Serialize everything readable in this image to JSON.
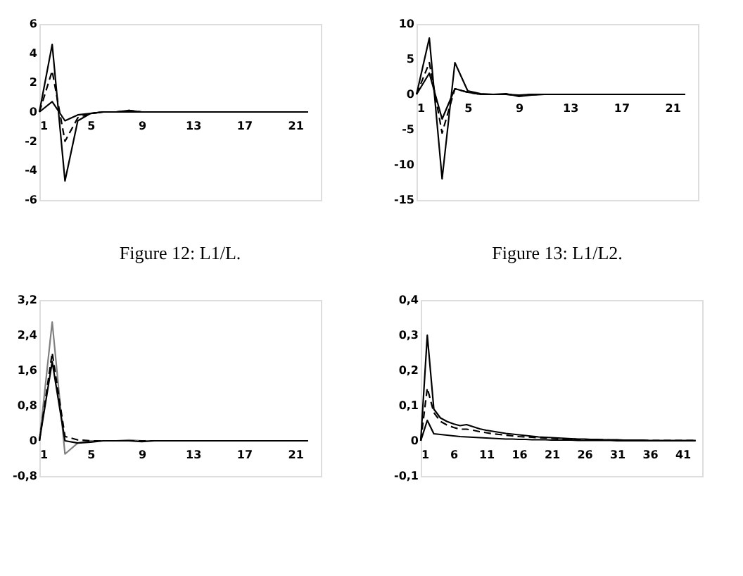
{
  "chart_data": [
    {
      "type": "line",
      "title": "Figure 12: L1/L.",
      "x": [
        1,
        2,
        3,
        4,
        5,
        6,
        7,
        8,
        9,
        10,
        11,
        12,
        13,
        14,
        15,
        16,
        17,
        18,
        19,
        20,
        21,
        22
      ],
      "xlim": [
        1,
        23
      ],
      "xticks": [
        1,
        5,
        9,
        13,
        17,
        21
      ],
      "ylim": [
        -6,
        6
      ],
      "yticks": [
        -6,
        -4,
        -2,
        0,
        2,
        4,
        6
      ],
      "grid": false,
      "marker": "none",
      "series": [
        {
          "color": "#000000",
          "line_style": "solid",
          "values": [
            0,
            4.6,
            -4.7,
            -0.6,
            -0.1,
            0,
            0,
            0.1,
            0,
            0,
            0,
            0,
            0,
            0,
            0,
            0,
            0,
            0,
            0,
            0,
            0,
            0
          ]
        },
        {
          "color": "#000000",
          "line_style": "dashed",
          "values": [
            0,
            2.8,
            -2.0,
            -0.4,
            -0.1,
            0,
            0,
            0.1,
            0,
            0,
            0,
            0,
            0,
            0,
            0,
            0,
            0,
            0,
            0,
            0,
            0,
            0
          ]
        },
        {
          "color": "#000000",
          "line_style": "solid",
          "values": [
            0,
            0.7,
            -0.6,
            -0.2,
            -0.1,
            0,
            0,
            0,
            0,
            0,
            0,
            0,
            0,
            0,
            0,
            0,
            0,
            0,
            0,
            0,
            0,
            0
          ]
        }
      ]
    },
    {
      "type": "line",
      "title": "Figure 13: L1/L2.",
      "x": [
        1,
        2,
        3,
        4,
        5,
        6,
        7,
        8,
        9,
        10,
        11,
        12,
        13,
        14,
        15,
        16,
        17,
        18,
        19,
        20,
        21,
        22
      ],
      "xlim": [
        1,
        23
      ],
      "xticks": [
        1,
        5,
        9,
        13,
        17,
        21
      ],
      "ylim": [
        -15,
        10
      ],
      "yticks": [
        -15,
        -10,
        -5,
        0,
        5,
        10
      ],
      "grid": false,
      "marker": "none",
      "series": [
        {
          "color": "#000000",
          "line_style": "solid",
          "values": [
            0,
            8,
            -12,
            4.5,
            0.5,
            0.1,
            0,
            0.1,
            -0.3,
            -0.1,
            0,
            0,
            0,
            0,
            0,
            0,
            0,
            0,
            0,
            0,
            0,
            0
          ]
        },
        {
          "color": "#000000",
          "line_style": "dashed",
          "values": [
            0,
            4.5,
            -5.5,
            0.8,
            0.3,
            0,
            0,
            0,
            -0.2,
            0,
            0,
            0,
            0,
            0,
            0,
            0,
            0,
            0,
            0,
            0,
            0,
            0
          ]
        },
        {
          "color": "#000000",
          "line_style": "solid",
          "values": [
            0,
            3,
            -3.5,
            0.8,
            0.3,
            0,
            0,
            0,
            -0.1,
            0,
            0,
            0,
            0,
            0,
            0,
            0,
            0,
            0,
            0,
            0,
            0,
            0
          ]
        }
      ]
    },
    {
      "type": "line",
      "x": [
        1,
        2,
        3,
        4,
        5,
        6,
        7,
        8,
        9,
        10,
        11,
        12,
        13,
        14,
        15,
        16,
        17,
        18,
        19,
        20,
        21,
        22
      ],
      "xlim": [
        1,
        23
      ],
      "xticks": [
        1,
        5,
        9,
        13,
        17,
        21
      ],
      "ylim": [
        -0.8,
        3.2
      ],
      "yticks": [
        {
          "value": -0.8,
          "label": "-0,8"
        },
        0,
        {
          "value": 0.8,
          "label": "0,8"
        },
        {
          "value": 1.6,
          "label": "1,6"
        },
        {
          "value": 2.4,
          "label": "2,4"
        },
        {
          "value": 3.2,
          "label": "3,2"
        }
      ],
      "grid": false,
      "marker": "none",
      "series": [
        {
          "color": "#808080",
          "line_style": "solid",
          "values": [
            0,
            2.7,
            -0.3,
            -0.05,
            0,
            0,
            0,
            0.02,
            0,
            0,
            0,
            0,
            0,
            0,
            0,
            0,
            0,
            0,
            0,
            0,
            0,
            0
          ]
        },
        {
          "color": "#000000",
          "line_style": "dashed",
          "values": [
            0,
            2.0,
            0.1,
            0.02,
            0,
            0,
            0,
            0,
            0,
            0,
            0,
            0,
            0,
            0,
            0,
            0,
            0,
            0,
            0,
            0,
            0,
            0
          ]
        },
        {
          "color": "#000000",
          "line_style": "solid",
          "values": [
            0,
            1.8,
            0,
            -0.05,
            -0.03,
            0,
            0,
            0,
            -0.02,
            0,
            0,
            0,
            0,
            0,
            0,
            0,
            0,
            0,
            0,
            0,
            0,
            0
          ]
        }
      ]
    },
    {
      "type": "line",
      "x": [
        1,
        2,
        3,
        4,
        5,
        6,
        7,
        8,
        9,
        10,
        11,
        12,
        13,
        14,
        15,
        16,
        17,
        18,
        19,
        20,
        21,
        22,
        23,
        24,
        25,
        26,
        27,
        28,
        29,
        30,
        31,
        32,
        33,
        34,
        35,
        36,
        37,
        38,
        39,
        40,
        41,
        42,
        43
      ],
      "xlim": [
        1,
        44
      ],
      "xticks": [
        1,
        6,
        11,
        16,
        21,
        26,
        31,
        36,
        41
      ],
      "ylim": [
        -0.1,
        0.4
      ],
      "yticks": [
        {
          "value": -0.1,
          "label": "-0,1"
        },
        0,
        {
          "value": 0.1,
          "label": "0,1"
        },
        {
          "value": 0.2,
          "label": "0,2"
        },
        {
          "value": 0.3,
          "label": "0,3"
        },
        {
          "value": 0.4,
          "label": "0,4"
        }
      ],
      "grid": false,
      "marker": "none",
      "series": [
        {
          "color": "#000000",
          "line_style": "solid",
          "values": [
            0,
            0.3,
            0.09,
            0.065,
            0.055,
            0.048,
            0.043,
            0.046,
            0.04,
            0.034,
            0.03,
            0.027,
            0.024,
            0.021,
            0.019,
            0.017,
            0.015,
            0.013,
            0.011,
            0.01,
            0.009,
            0.008,
            0.007,
            0.006,
            0.005,
            0.005,
            0.004,
            0.004,
            0.003,
            0.003,
            0.003,
            0.002,
            0.002,
            0.002,
            0.002,
            0.001,
            0.001,
            0.001,
            0.001,
            0.001,
            0.001,
            0.001,
            0.001
          ]
        },
        {
          "color": "#000000",
          "line_style": "dashed",
          "values": [
            0,
            0.15,
            0.08,
            0.055,
            0.045,
            0.038,
            0.033,
            0.033,
            0.03,
            0.026,
            0.023,
            0.02,
            0.018,
            0.016,
            0.014,
            0.012,
            0.011,
            0.01,
            0.009,
            0.008,
            0.007,
            0.006,
            0.005,
            0.005,
            0.004,
            0.004,
            0.003,
            0.003,
            0.003,
            0.002,
            0.002,
            0.002,
            0.002,
            0.001,
            0.001,
            0.001,
            0.001,
            0.001,
            0.001,
            0.001,
            0.001,
            0.001,
            0.001
          ]
        },
        {
          "color": "#000000",
          "line_style": "solid",
          "values": [
            0,
            0.058,
            0.02,
            0.018,
            0.016,
            0.014,
            0.012,
            0.011,
            0.01,
            0.009,
            0.008,
            0.007,
            0.006,
            0.005,
            0.005,
            0.004,
            0.004,
            0.003,
            0.003,
            0.003,
            0.002,
            0.002,
            0.002,
            0.002,
            0.001,
            0.001,
            0.001,
            0.001,
            0.001,
            0.001,
            0,
            0,
            0,
            0,
            0,
            0,
            0,
            0,
            0,
            0,
            0,
            0,
            0
          ]
        }
      ]
    }
  ]
}
